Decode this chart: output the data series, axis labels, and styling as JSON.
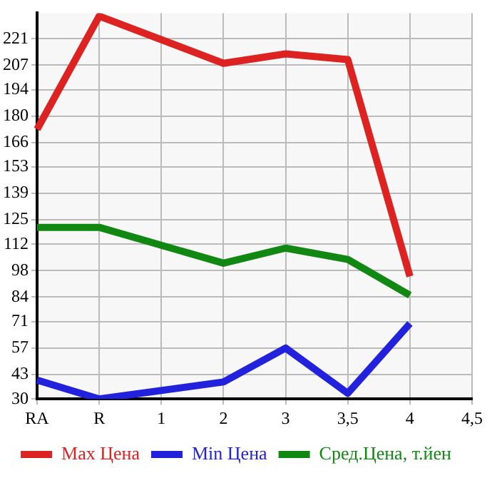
{
  "chart_data": {
    "type": "line",
    "categories": [
      "RA",
      "R",
      "1",
      "2",
      "3",
      "3,5",
      "4",
      "4,5"
    ],
    "series": [
      {
        "name": "Max Цена",
        "color": "#dd2222",
        "values": [
          173,
          233,
          null,
          208,
          213,
          210,
          95,
          null
        ]
      },
      {
        "name": "Min Цена",
        "color": "#2222dd",
        "values": [
          40,
          30,
          null,
          39,
          57,
          33,
          70,
          null
        ]
      },
      {
        "name": "Сред.Цена, т.йен",
        "color": "#118811",
        "values": [
          121,
          121,
          null,
          102,
          110,
          104,
          85,
          null
        ]
      }
    ],
    "ylim": [
      30,
      234.6
    ],
    "yticks": [
      30,
      43,
      57,
      71,
      84,
      98,
      112,
      125,
      139,
      153,
      166,
      180,
      194,
      207,
      221
    ],
    "grid": true,
    "legend": "bottom",
    "marker": "none",
    "line_style": "solid"
  }
}
